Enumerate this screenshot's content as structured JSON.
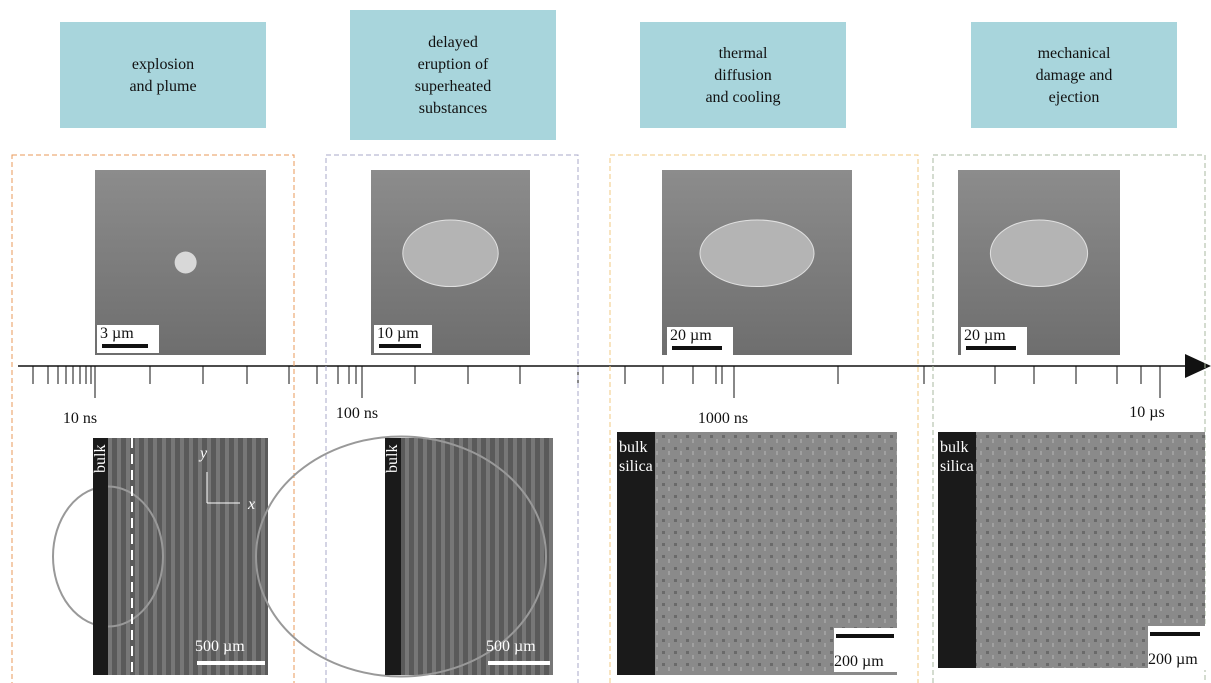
{
  "panels": [
    {
      "title": [
        "explosion",
        "and  plume"
      ],
      "sem_scale": "3 µm",
      "time": "10 ns",
      "bulk": [
        "bulk"
      ],
      "shadow_scale": "500 µm",
      "axis_y": "y",
      "axis_x": "x"
    },
    {
      "title": [
        "delayed",
        "eruption of",
        "superheated",
        "substances"
      ],
      "sem_scale": "10 µm",
      "time": "100 ns",
      "bulk": [
        "bulk"
      ],
      "shadow_scale": "500 µm"
    },
    {
      "title": [
        "thermal",
        "diffusion",
        "and cooling"
      ],
      "sem_scale": "20 µm",
      "time": "1000 ns",
      "bulk": [
        "bulk",
        "silica"
      ],
      "shadow_scale": "200 µm"
    },
    {
      "title": [
        "mechanical",
        "damage and",
        "ejection"
      ],
      "sem_scale": "20 µm",
      "time": "10 µs",
      "bulk": [
        "bulk",
        "silica"
      ],
      "shadow_scale": "200 µm"
    }
  ]
}
